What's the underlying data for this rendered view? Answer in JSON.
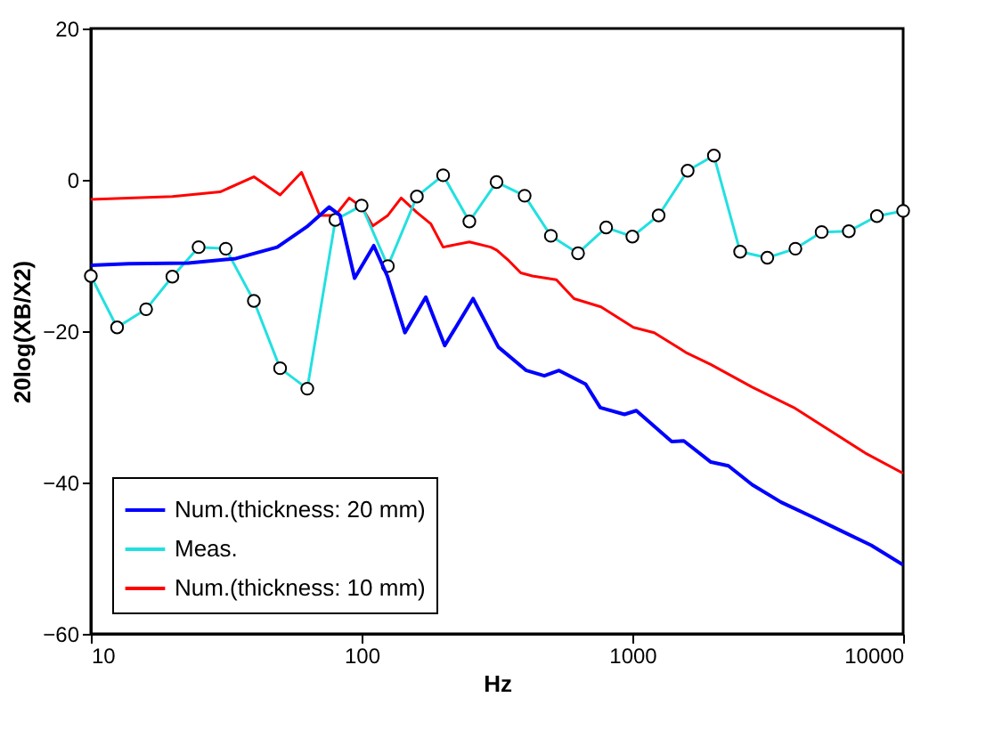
{
  "chart_data": {
    "type": "line",
    "xlabel": "Hz",
    "ylabel": "20log(XB/X2)",
    "log": "x",
    "xlim": [
      10,
      10000
    ],
    "xticks": [
      10,
      100,
      1000,
      10000
    ],
    "ylim": [
      -60,
      20
    ],
    "yticks": [
      -60,
      -40,
      -20,
      0,
      20
    ],
    "grid": false,
    "legend": "bottom left",
    "series": [
      {
        "name": "Num.(thickness: 20 mm)",
        "color": "#0000ff",
        "marker": "none",
        "line_style": "solid",
        "x": [
          10,
          13.8,
          22.9,
          34.3,
          48.8,
          62.8,
          75.9,
          83.2,
          94.2,
          110.9,
          124.4,
          144.5,
          172.6,
          202.8,
          258,
          320,
          406,
          473,
          536,
          672,
          761,
          935,
          1034,
          1397,
          1548,
          1950,
          2262,
          2770,
          3541,
          4593,
          5910,
          7619,
          10000
        ],
        "values": [
          -11.3,
          -11.1,
          -11.0,
          -10.4,
          -8.9,
          -6.2,
          -3.6,
          -4.7,
          -13.0,
          -8.7,
          -12.7,
          -20.2,
          -15.5,
          -21.9,
          -15.7,
          -22.1,
          -25.2,
          -25.9,
          -25.2,
          -27.0,
          -30.1,
          -31.0,
          -30.5,
          -34.6,
          -34.5,
          -37.3,
          -37.8,
          -40.3,
          -42.6,
          -44.5,
          -46.4,
          -48.3,
          -50.9
        ]
      },
      {
        "name": "Meas.",
        "color": "#22e0e0",
        "marker": "circle",
        "line_style": "solid",
        "x": [
          10,
          12.5,
          16,
          20,
          25,
          31.5,
          40,
          50,
          63,
          80,
          100,
          125,
          160,
          200,
          250,
          315,
          400,
          500,
          630,
          800,
          1000,
          1250,
          1600,
          2000,
          2500,
          3150,
          4000,
          5000,
          6300,
          8000,
          10000
        ],
        "values": [
          -12.7,
          -19.5,
          -17.1,
          -12.8,
          -8.9,
          -9.1,
          -16.0,
          -24.9,
          -27.6,
          -5.3,
          -3.4,
          -11.4,
          -2.2,
          0.6,
          -5.5,
          -0.3,
          -2.1,
          -7.4,
          -9.7,
          -6.3,
          -7.5,
          -4.7,
          1.2,
          3.2,
          -9.5,
          -10.3,
          -9.1,
          -6.9,
          -6.8,
          -4.8,
          -4.1
        ]
      },
      {
        "name": "Num.(thickness: 10 mm)",
        "color": "#ff0000",
        "marker": "none",
        "line_style": "solid",
        "x": [
          10,
          20,
          30,
          40,
          50,
          60,
          70,
          80,
          90,
          100,
          110,
          125,
          140,
          160,
          180,
          200,
          250,
          300,
          316,
          350,
          387,
          427,
          524,
          609,
          766,
          1009,
          1204,
          1592,
          1946,
          2770,
          3947,
          7240,
          10000
        ],
        "values": [
          -2.6,
          -2.2,
          -1.6,
          0.4,
          -2.0,
          1.0,
          -4.7,
          -4.7,
          -2.4,
          -3.6,
          -6.1,
          -4.7,
          -2.4,
          -4.3,
          -5.8,
          -8.9,
          -8.2,
          -8.9,
          -9.3,
          -10.7,
          -12.3,
          -12.7,
          -13.2,
          -15.7,
          -16.8,
          -19.5,
          -20.2,
          -22.9,
          -24.4,
          -27.4,
          -30.1,
          -36.1,
          -38.8
        ]
      }
    ]
  }
}
